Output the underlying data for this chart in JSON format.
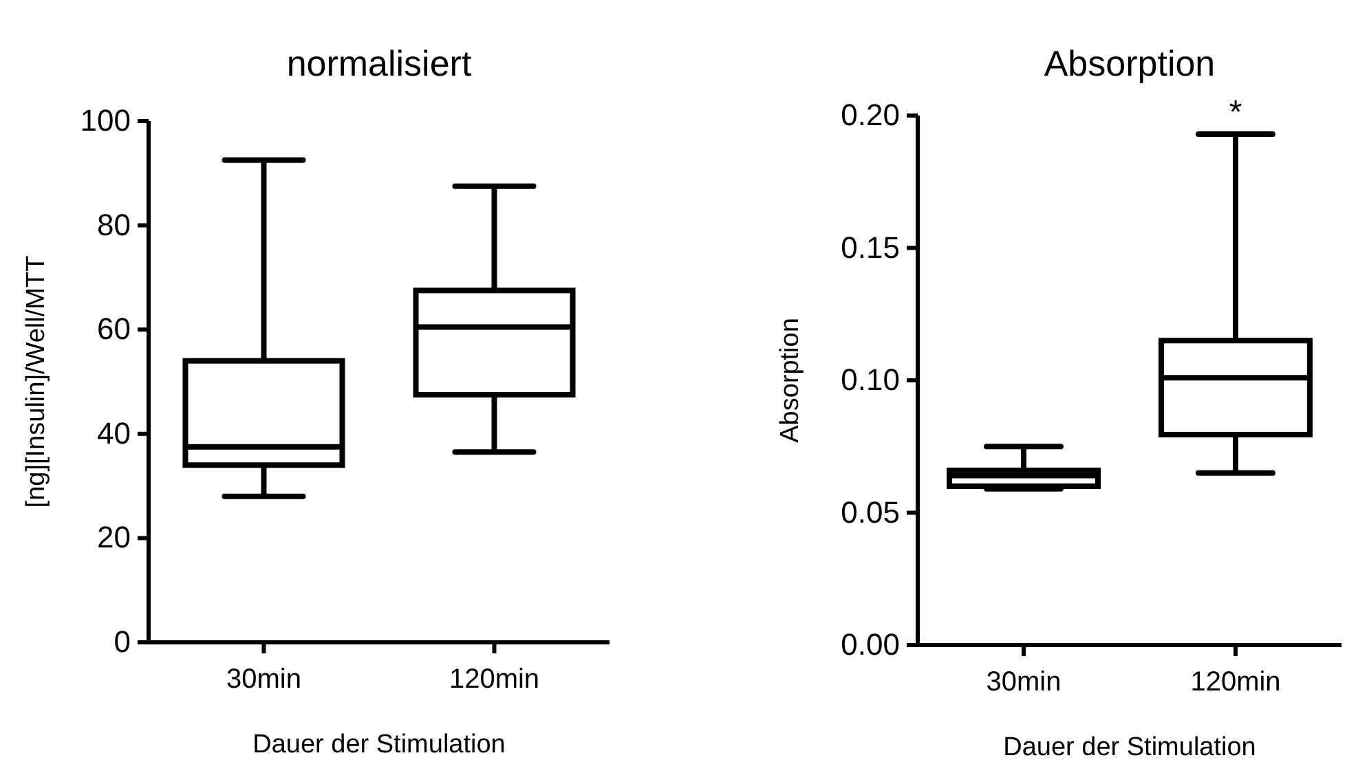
{
  "chart_data": [
    {
      "type": "box",
      "title": "normalisiert",
      "xlabel": "Dauer der Stimulation",
      "ylabel": "[ng][Insulin]/Well/MTT",
      "categories": [
        "30min",
        "120min"
      ],
      "ylim": [
        0,
        100
      ],
      "yticks": [
        0,
        20,
        40,
        60,
        80,
        100
      ],
      "boxes": [
        {
          "low": 28,
          "q1": 34,
          "median": 37.5,
          "q3": 54,
          "high": 92.5
        },
        {
          "low": 36.5,
          "q1": 47.5,
          "median": 60.5,
          "q3": 67.5,
          "high": 87.5
        }
      ]
    },
    {
      "type": "box",
      "title": "Absorption",
      "xlabel": "Dauer der Stimulation",
      "ylabel": "Absorption",
      "categories": [
        "30min",
        "120min"
      ],
      "ylim": [
        0,
        0.2
      ],
      "yticks": [
        {
          "value": 0,
          "label": "0.00"
        },
        {
          "value": 0.05,
          "label": "0.05"
        },
        {
          "value": 0.1,
          "label": "0.10"
        },
        {
          "value": 0.15,
          "label": "0.15"
        },
        {
          "value": 0.2,
          "label": "0.20"
        }
      ],
      "boxes": [
        {
          "low": 0.059,
          "q1": 0.06,
          "median": 0.064,
          "q3": 0.066,
          "high": 0.075
        },
        {
          "low": 0.065,
          "q1": 0.0795,
          "median": 0.101,
          "q3": 0.115,
          "high": 0.193
        }
      ],
      "annotations": [
        {
          "text": "*",
          "x": "120min",
          "y": 0.193
        }
      ]
    }
  ]
}
